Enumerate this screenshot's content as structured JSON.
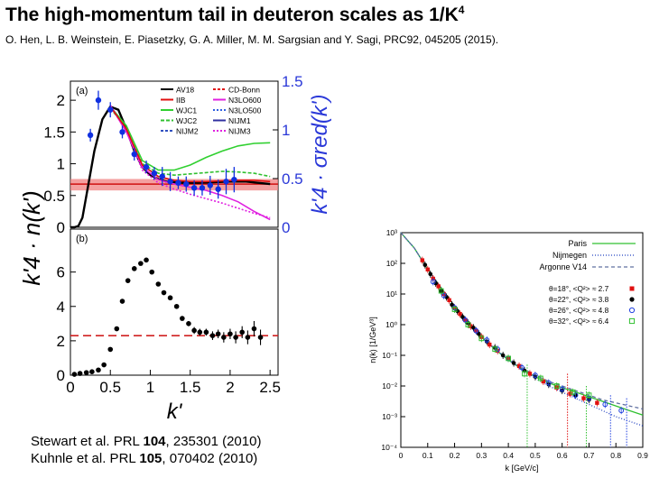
{
  "header": {
    "title": "The high-momentum tail in deuteron scales as 1/K",
    "title_sup": "4",
    "citation": "O. Hen, L. B. Weinstein, E. Piasetzky, G. A. Miller, M. M. Sargsian and Y. Sagi, PRC92, 045205 (2015)."
  },
  "references": [
    {
      "pre": "Stewart et al. PRL ",
      "vol": "104",
      "post": ", 235301 (2010)"
    },
    {
      "pre": "Kuhnle et al. PRL ",
      "vol": "105",
      "post": ", 070402 (2010)"
    }
  ],
  "chart_data": [
    {
      "type": "line",
      "panel": "(a)",
      "xlabel": "k'",
      "ylabel": "k'4 · n(k')",
      "ylabel_right": "k'4 · σred(k')",
      "xlim": [
        0,
        2.6
      ],
      "ylim": [
        0,
        2.3
      ],
      "yticks": [
        "0",
        "0.5",
        "1",
        "1.5",
        "2"
      ],
      "ylim_right": [
        0,
        1.5
      ],
      "yticks_right": [
        "0",
        "0.5",
        "1",
        "1.5"
      ],
      "band": {
        "value": 0.68,
        "low": 0.58,
        "high": 0.76,
        "color": "#f08080"
      },
      "legend": [
        {
          "name": "AV18",
          "color": "#000000",
          "dash": "none"
        },
        {
          "name": "IIB",
          "color": "#e01010",
          "dash": "none"
        },
        {
          "name": "WJC1",
          "color": "#30d030",
          "dash": "none"
        },
        {
          "name": "WJC2",
          "color": "#30c030",
          "dash": "4,2"
        },
        {
          "name": "NIJM2",
          "color": "#3050c0",
          "dash": "3,2"
        },
        {
          "name": "CD-Bonn",
          "color": "#e01010",
          "dash": "3,2"
        },
        {
          "name": "N3LO600",
          "color": "#e020e0",
          "dash": "none"
        },
        {
          "name": "N3LO500",
          "color": "#3060e0",
          "dash": "2,2"
        },
        {
          "name": "NIJM1",
          "color": "#3030a0",
          "dash": "none"
        },
        {
          "name": "NIJM3",
          "color": "#e020e0",
          "dash": "2,2"
        }
      ],
      "series": [
        {
          "name": "AV18",
          "color": "#000000",
          "x": [
            0,
            0.05,
            0.1,
            0.15,
            0.2,
            0.3,
            0.4,
            0.5,
            0.6,
            0.7,
            0.8,
            0.9,
            1.0,
            1.1,
            1.2,
            1.4,
            1.6,
            1.8,
            2.0,
            2.2,
            2.5
          ],
          "y": [
            0,
            0.0,
            0.02,
            0.15,
            0.5,
            1.2,
            1.7,
            1.9,
            1.85,
            1.55,
            1.2,
            0.95,
            0.82,
            0.76,
            0.72,
            0.7,
            0.7,
            0.71,
            0.72,
            0.72,
            0.68
          ]
        },
        {
          "name": "WJC1",
          "color": "#30d030",
          "x": [
            0.5,
            0.7,
            0.9,
            1.1,
            1.3,
            1.5,
            1.7,
            1.9,
            2.1,
            2.3,
            2.5
          ],
          "y": [
            1.9,
            1.6,
            1.05,
            0.9,
            0.9,
            0.98,
            1.1,
            1.2,
            1.28,
            1.32,
            1.33
          ]
        },
        {
          "name": "WJC2",
          "color": "#30c030",
          "x": [
            0.5,
            0.7,
            0.9,
            1.1,
            1.3,
            1.5,
            1.7,
            1.9,
            2.1,
            2.3,
            2.5
          ],
          "y": [
            1.88,
            1.55,
            1.0,
            0.85,
            0.82,
            0.84,
            0.86,
            0.88,
            0.87,
            0.85,
            0.8
          ]
        },
        {
          "name": "N3LO600",
          "color": "#e020e0",
          "x": [
            0.5,
            0.7,
            0.9,
            1.1,
            1.3,
            1.5,
            1.7,
            1.9,
            2.1,
            2.3,
            2.5
          ],
          "y": [
            1.92,
            1.5,
            0.95,
            0.75,
            0.68,
            0.63,
            0.58,
            0.5,
            0.4,
            0.25,
            0.12
          ]
        },
        {
          "name": "NIJM3",
          "color": "#e020e0",
          "x": [
            0.5,
            0.7,
            0.9,
            1.1,
            1.3,
            1.5,
            1.7,
            1.9,
            2.1,
            2.3,
            2.5
          ],
          "y": [
            1.92,
            1.52,
            0.9,
            0.7,
            0.6,
            0.52,
            0.45,
            0.38,
            0.3,
            0.22,
            0.15
          ]
        },
        {
          "name": "IIB",
          "color": "#e01010",
          "x": [
            0.5,
            0.7,
            0.9,
            1.1,
            1.3,
            1.5,
            1.7,
            1.9,
            2.1,
            2.3,
            2.5
          ],
          "y": [
            1.9,
            1.55,
            0.98,
            0.8,
            0.74,
            0.72,
            0.72,
            0.73,
            0.74,
            0.74,
            0.72
          ]
        }
      ],
      "points": {
        "name": "data",
        "color": "#1030e0",
        "x": [
          0.25,
          0.35,
          0.5,
          0.65,
          0.8,
          0.95,
          1.05,
          1.15,
          1.25,
          1.35,
          1.45,
          1.55,
          1.65,
          1.75,
          1.85,
          1.95,
          2.05
        ],
        "y": [
          1.45,
          2.0,
          1.85,
          1.5,
          1.15,
          0.95,
          0.85,
          0.8,
          0.72,
          0.7,
          0.68,
          0.62,
          0.62,
          0.66,
          0.6,
          0.72,
          0.75
        ],
        "err": [
          0.1,
          0.15,
          0.12,
          0.1,
          0.1,
          0.1,
          0.1,
          0.15,
          0.15,
          0.1,
          0.12,
          0.12,
          0.12,
          0.15,
          0.15,
          0.2,
          0.2
        ]
      }
    },
    {
      "type": "scatter",
      "panel": "(b)",
      "xlabel": "k'",
      "xlim": [
        0,
        2.6
      ],
      "ylim": [
        0,
        8.5
      ],
      "xticks": [
        "0",
        "0.5",
        "1",
        "1.5",
        "2",
        "2.5"
      ],
      "yticks": [
        "0",
        "2",
        "4",
        "6"
      ],
      "reference_line": 2.3,
      "points": {
        "x": [
          0.05,
          0.12,
          0.2,
          0.27,
          0.35,
          0.42,
          0.5,
          0.58,
          0.65,
          0.72,
          0.8,
          0.88,
          0.95,
          1.02,
          1.1,
          1.17,
          1.25,
          1.33,
          1.4,
          1.48,
          1.55,
          1.62,
          1.7,
          1.78,
          1.85,
          1.92,
          2.0,
          2.07,
          2.15,
          2.22,
          2.3,
          2.38
        ],
        "y": [
          0.05,
          0.1,
          0.15,
          0.2,
          0.3,
          0.6,
          1.5,
          2.7,
          4.3,
          5.5,
          6.2,
          6.5,
          6.7,
          6.0,
          5.3,
          4.8,
          4.5,
          4.0,
          3.3,
          3.0,
          2.6,
          2.5,
          2.5,
          2.3,
          2.4,
          2.2,
          2.4,
          2.2,
          2.5,
          2.2,
          2.7,
          2.2
        ],
        "err": [
          0.05,
          0.05,
          0.05,
          0.05,
          0.05,
          0.05,
          0.1,
          0.1,
          0.1,
          0.1,
          0.1,
          0.1,
          0.1,
          0.1,
          0.1,
          0.1,
          0.1,
          0.1,
          0.1,
          0.15,
          0.2,
          0.2,
          0.2,
          0.25,
          0.25,
          0.3,
          0.3,
          0.35,
          0.35,
          0.4,
          0.45,
          0.45
        ]
      }
    },
    {
      "type": "line",
      "xlabel": "k [GeV/c]",
      "ylabel": "n(k) [1/GeV³]",
      "xlim": [
        0,
        0.9
      ],
      "xticks": [
        "0",
        "0.1",
        "0.2",
        "0.3",
        "0.4",
        "0.5",
        "0.6",
        "0.7",
        "0.8",
        "0.9"
      ],
      "ylog_range": [
        -4,
        3
      ],
      "yticks": [
        "10⁻⁴",
        "10⁻³",
        "10⁻²",
        "10⁻¹",
        "10⁰",
        "10¹",
        "10²",
        "10³"
      ],
      "legend": [
        {
          "name": "Paris",
          "color": "#30c030",
          "dash": "none"
        },
        {
          "name": "Nijmegen",
          "color": "#2040c0",
          "dash": "1,2"
        },
        {
          "name": "Argonne V14",
          "color": "#6070a0",
          "dash": "4,3"
        }
      ],
      "data_legend": [
        {
          "label": "θ=18°,  <Q²> ≈ 2.7",
          "color": "#e01010",
          "shape": "square"
        },
        {
          "label": "θ=22°,  <Q²> ≈ 3.8",
          "color": "#000000",
          "shape": "circle"
        },
        {
          "label": "θ=26°,  <Q²> ≈ 4.8",
          "color": "#2040e0",
          "shape": "open-circle"
        },
        {
          "label": "θ=32°,  <Q²> ≈ 6.4",
          "color": "#30c030",
          "shape": "open-square"
        }
      ],
      "curves": [
        {
          "name": "Paris",
          "color": "#30c030",
          "x": [
            0.0,
            0.05,
            0.1,
            0.15,
            0.2,
            0.25,
            0.3,
            0.35,
            0.4,
            0.45,
            0.5,
            0.55,
            0.6,
            0.65,
            0.7,
            0.75,
            0.8,
            0.85,
            0.9
          ],
          "logy": [
            3.0,
            2.5,
            1.8,
            1.2,
            0.6,
            0.1,
            -0.4,
            -0.8,
            -1.15,
            -1.45,
            -1.7,
            -1.9,
            -2.05,
            -2.2,
            -2.35,
            -2.5,
            -2.65,
            -2.8,
            -2.95
          ]
        },
        {
          "name": "Nijmegen",
          "color": "#2040c0",
          "x": [
            0.0,
            0.05,
            0.1,
            0.15,
            0.2,
            0.25,
            0.3,
            0.35,
            0.4,
            0.45,
            0.5,
            0.55,
            0.6,
            0.65,
            0.7,
            0.75,
            0.8,
            0.85,
            0.9
          ],
          "logy": [
            3.0,
            2.5,
            1.8,
            1.2,
            0.6,
            0.1,
            -0.4,
            -0.8,
            -1.15,
            -1.45,
            -1.75,
            -2.0,
            -2.2,
            -2.4,
            -2.6,
            -2.8,
            -3.0,
            -3.15,
            -3.3
          ]
        },
        {
          "name": "Argonne V14",
          "color": "#6070a0",
          "x": [
            0.0,
            0.05,
            0.1,
            0.15,
            0.2,
            0.25,
            0.3,
            0.35,
            0.4,
            0.45,
            0.5,
            0.55,
            0.6,
            0.65,
            0.7,
            0.75,
            0.8,
            0.85,
            0.9
          ],
          "logy": [
            3.0,
            2.5,
            1.8,
            1.2,
            0.6,
            0.1,
            -0.4,
            -0.78,
            -1.1,
            -1.4,
            -1.65,
            -1.85,
            -2.0,
            -2.15,
            -2.3,
            -2.45,
            -2.55,
            -2.65,
            -2.75
          ]
        }
      ],
      "points": [
        {
          "name": "θ=18°",
          "color": "#e01010",
          "shape": "square",
          "x": [
            0.08,
            0.1,
            0.12,
            0.14,
            0.16,
            0.18,
            0.2,
            0.22,
            0.24,
            0.26,
            0.28,
            0.3,
            0.33,
            0.36,
            0.4,
            0.44,
            0.48,
            0.53,
            0.58,
            0.63,
            0.68,
            0.73
          ],
          "logy": [
            2.1,
            1.8,
            1.5,
            1.25,
            1.0,
            0.8,
            0.55,
            0.35,
            0.15,
            -0.05,
            -0.2,
            -0.4,
            -0.65,
            -0.85,
            -1.1,
            -1.35,
            -1.6,
            -1.85,
            -2.05,
            -2.25,
            -2.4,
            -2.55
          ]
        },
        {
          "name": "θ=22°",
          "color": "#000000",
          "shape": "circle",
          "x": [
            0.09,
            0.11,
            0.13,
            0.15,
            0.17,
            0.19,
            0.21,
            0.23,
            0.25,
            0.27,
            0.29,
            0.32,
            0.35,
            0.38,
            0.42,
            0.46,
            0.5,
            0.55,
            0.6,
            0.65,
            0.7
          ],
          "logy": [
            1.95,
            1.65,
            1.35,
            1.1,
            0.9,
            0.65,
            0.45,
            0.25,
            0.05,
            -0.1,
            -0.3,
            -0.55,
            -0.75,
            -1.0,
            -1.25,
            -1.5,
            -1.7,
            -1.95,
            -2.15,
            -2.3,
            -2.45
          ]
        },
        {
          "name": "θ=26°",
          "color": "#2040e0",
          "shape": "open-circle",
          "x": [
            0.12,
            0.16,
            0.2,
            0.24,
            0.28,
            0.32,
            0.36,
            0.4,
            0.45,
            0.5,
            0.55,
            0.6,
            0.65,
            0.7,
            0.76,
            0.82
          ],
          "logy": [
            1.4,
            0.95,
            0.55,
            0.15,
            -0.2,
            -0.5,
            -0.8,
            -1.1,
            -1.4,
            -1.65,
            -1.9,
            -2.1,
            -2.3,
            -2.4,
            -2.6,
            -2.8
          ]
        },
        {
          "name": "θ=32°",
          "color": "#30c030",
          "shape": "open-square",
          "x": [
            0.15,
            0.2,
            0.25,
            0.3,
            0.35,
            0.4,
            0.46,
            0.52,
            0.58,
            0.64,
            0.7
          ],
          "logy": [
            1.1,
            0.5,
            0.0,
            -0.45,
            -0.8,
            -1.1,
            -1.6,
            -1.75,
            -2.0,
            -2.2,
            -2.3
          ]
        }
      ]
    }
  ]
}
